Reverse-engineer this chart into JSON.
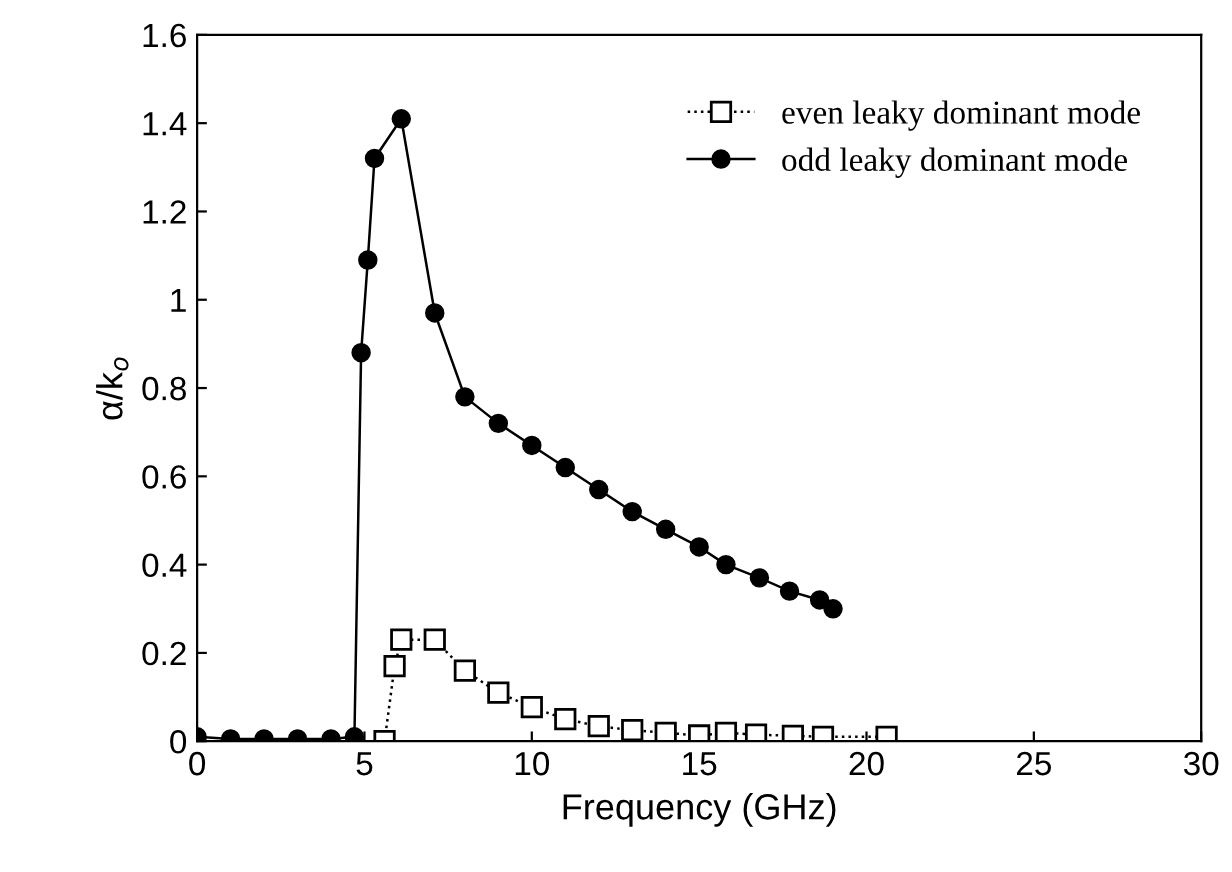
{
  "chart_data": {
    "type": "line",
    "xlabel": "Frequency (GHz)",
    "ylabel": "α/k$_{o}$",
    "xlim": [
      0,
      30
    ],
    "ylim": [
      0,
      1.6
    ],
    "xticks": [
      0,
      5,
      10,
      15,
      20,
      25,
      30
    ],
    "yticks": [
      0,
      0.2,
      0.4,
      0.6,
      0.8,
      1,
      1.2,
      1.4,
      1.6
    ],
    "legend": "top right",
    "grid": false,
    "series": [
      {
        "name": "even leaky dominant mode",
        "color": "#000000",
        "marker": "square",
        "line_style": "dotted",
        "x": [
          5.6,
          5.9,
          6.1,
          7.1,
          8.0,
          9.0,
          10.0,
          11.0,
          12.0,
          13.0,
          14.0,
          15.0,
          15.8,
          16.7,
          17.8,
          18.7,
          20.6
        ],
        "values": [
          0.0,
          0.17,
          0.23,
          0.23,
          0.16,
          0.11,
          0.077,
          0.05,
          0.034,
          0.025,
          0.019,
          0.013,
          0.019,
          0.015,
          0.012,
          0.01,
          0.01
        ]
      },
      {
        "name": "odd leaky dominant mode",
        "color": "#000000",
        "marker": "circle",
        "line_style": "solid",
        "x": [
          0,
          1,
          2,
          3,
          4,
          4.7,
          4.9,
          5.1,
          5.3,
          6.1,
          7.1,
          8.0,
          9.0,
          10.0,
          11.0,
          12.0,
          13.0,
          14.0,
          15.0,
          15.8,
          16.8,
          17.7,
          18.6,
          19.0
        ],
        "values": [
          0.01,
          0.005,
          0.005,
          0.005,
          0.005,
          0.01,
          0.88,
          1.09,
          1.32,
          1.41,
          0.97,
          0.78,
          0.72,
          0.67,
          0.62,
          0.57,
          0.52,
          0.48,
          0.44,
          0.4,
          0.37,
          0.34,
          0.32,
          0.3
        ]
      }
    ]
  }
}
